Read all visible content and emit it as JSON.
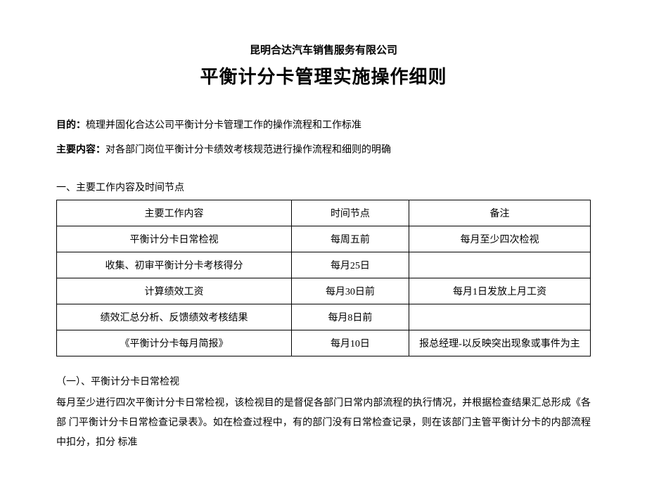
{
  "header": {
    "company": "昆明合达汽车销售服务有限公司",
    "title": "平衡计分卡管理实施操作细则"
  },
  "intro": {
    "purpose_label": "目的：",
    "purpose_text": "梳理并固化合达公司平衡计分卡管理工作的操作流程和工作标准",
    "content_label": "主要内容：",
    "content_text": "对各部门岗位平衡计分卡绩效考核规范进行操作流程和细则的明确"
  },
  "section1": {
    "header": "一、主要工作内容及时间节点",
    "table": {
      "columns": [
        "主要工作内容",
        "时间节点",
        "备注"
      ],
      "rows": [
        [
          "平衡计分卡日常检视",
          "每周五前",
          "每月至少四次检视"
        ],
        [
          "收集、初审平衡计分卡考核得分",
          "每月25日",
          ""
        ],
        [
          "计算绩效工资",
          "每月30日前",
          "每月1日发放上月工资"
        ],
        [
          "绩效汇总分析、反馈绩效考核结果",
          "每月8日前",
          ""
        ],
        [
          "《平衡计分卡每月简报》",
          "每月10日",
          "报总经理-以反映突出现象或事件为主"
        ]
      ]
    }
  },
  "subsection1": {
    "title": "（一）、平衡计分卡日常检视",
    "body": "每月至少进行四次平衡计分卡日常检视，该检视目的是督促各部门日常内部流程的执行情况，并根据检查结果汇总形成《各部 门平衡计分卡日常检查记录表》。如在检查过程中，有的部门没有日常检查记录，则在该部门主管平衡计分卡的内部流程中扣分，扣分 标准"
  },
  "styling": {
    "background_color": "#ffffff",
    "text_color": "#000000",
    "border_color": "#000000",
    "company_fontsize": 15,
    "title_fontsize": 26,
    "body_fontsize": 14,
    "font_family": "SimSun"
  }
}
